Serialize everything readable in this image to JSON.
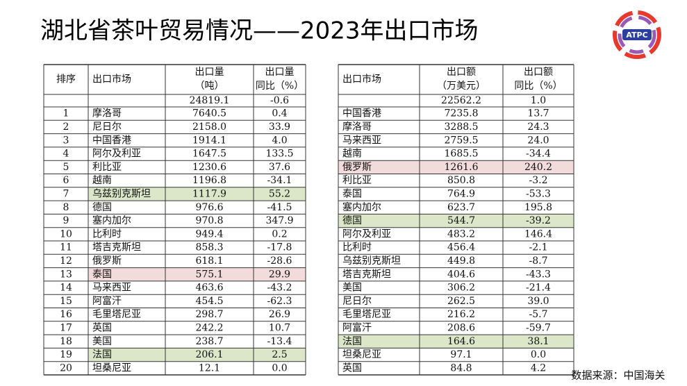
{
  "header": {
    "title": "湖北省茶叶贸易情况——2023年出口市场",
    "logo": "ATPC"
  },
  "left_table": {
    "columns": [
      [
        "排序"
      ],
      [
        "出口市场"
      ],
      [
        "出口量",
        "（吨）"
      ],
      [
        "出口量",
        "同比（%）"
      ]
    ],
    "total": [
      "24819.1",
      "-0.6"
    ],
    "rows": [
      [
        "1",
        "摩洛哥",
        "7640.5",
        "0.4"
      ],
      [
        "2",
        "尼日尔",
        "2158.0",
        "33.9"
      ],
      [
        "3",
        "中国香港",
        "1914.1",
        "4.0"
      ],
      [
        "4",
        "阿尔及利亚",
        "1647.5",
        "133.5"
      ],
      [
        "5",
        "利比亚",
        "1230.6",
        "37.6"
      ],
      [
        "6",
        "越南",
        "1196.8",
        "-34.1"
      ],
      [
        "7",
        "乌兹别克斯坦",
        "1117.9",
        "55.2"
      ],
      [
        "8",
        "德国",
        "976.6",
        "-41.5"
      ],
      [
        "9",
        "塞内加尔",
        "970.8",
        "347.9"
      ],
      [
        "10",
        "比利时",
        "949.4",
        "0.2"
      ],
      [
        "11",
        "塔吉克斯坦",
        "858.3",
        "-17.8"
      ],
      [
        "12",
        "俄罗斯",
        "618.1",
        "-28.6"
      ],
      [
        "13",
        "泰国",
        "575.1",
        "29.9"
      ],
      [
        "14",
        "马来西亚",
        "463.6",
        "-43.2"
      ],
      [
        "15",
        "阿富汗",
        "454.5",
        "-62.3"
      ],
      [
        "16",
        "毛里塔尼亚",
        "298.7",
        "26.9"
      ],
      [
        "17",
        "英国",
        "242.2",
        "10.7"
      ],
      [
        "18",
        "美国",
        "238.7",
        "-13.4"
      ],
      [
        "19",
        "法国",
        "206.1",
        "2.5"
      ],
      [
        "20",
        "坦桑尼亚",
        "12.1",
        "0.0"
      ]
    ]
  },
  "right_table": {
    "columns": [
      [
        "出口市场"
      ],
      [
        "出口额",
        "（万美元）"
      ],
      [
        "出口额",
        "同比（%）"
      ]
    ],
    "total": [
      "22562.2",
      "1.0"
    ],
    "rows": [
      [
        "中国香港",
        "7235.8",
        "13.7"
      ],
      [
        "摩洛哥",
        "3288.5",
        "24.3"
      ],
      [
        "马来西亚",
        "2759.5",
        "24.0"
      ],
      [
        "越南",
        "1685.5",
        "-34.4"
      ],
      [
        "俄罗斯",
        "1261.6",
        "240.2"
      ],
      [
        "利比亚",
        "850.8",
        "-3.2"
      ],
      [
        "泰国",
        "764.9",
        "-53.3"
      ],
      [
        "塞内加尔",
        "623.7",
        "195.8"
      ],
      [
        "德国",
        "544.7",
        "-39.2"
      ],
      [
        "阿尔及利亚",
        "483.2",
        "146.4"
      ],
      [
        "比利时",
        "456.4",
        "-2.1"
      ],
      [
        "乌兹别克斯坦",
        "449.8",
        "-8.7"
      ],
      [
        "塔吉克斯坦",
        "404.6",
        "-43.3"
      ],
      [
        "美国",
        "306.2",
        "-21.4"
      ],
      [
        "尼日尔",
        "262.5",
        "39.0"
      ],
      [
        "毛里塔尼亚",
        "216.2",
        "-5.7"
      ],
      [
        "阿富汗",
        "208.6",
        "-59.7"
      ],
      [
        "法国",
        "164.6",
        "38.1"
      ],
      [
        "坦桑尼亚",
        "97.1",
        "0.0"
      ],
      [
        "英国",
        "84.8",
        "4.2"
      ]
    ]
  },
  "footer": {
    "source": "数据来源：中国海关"
  }
}
